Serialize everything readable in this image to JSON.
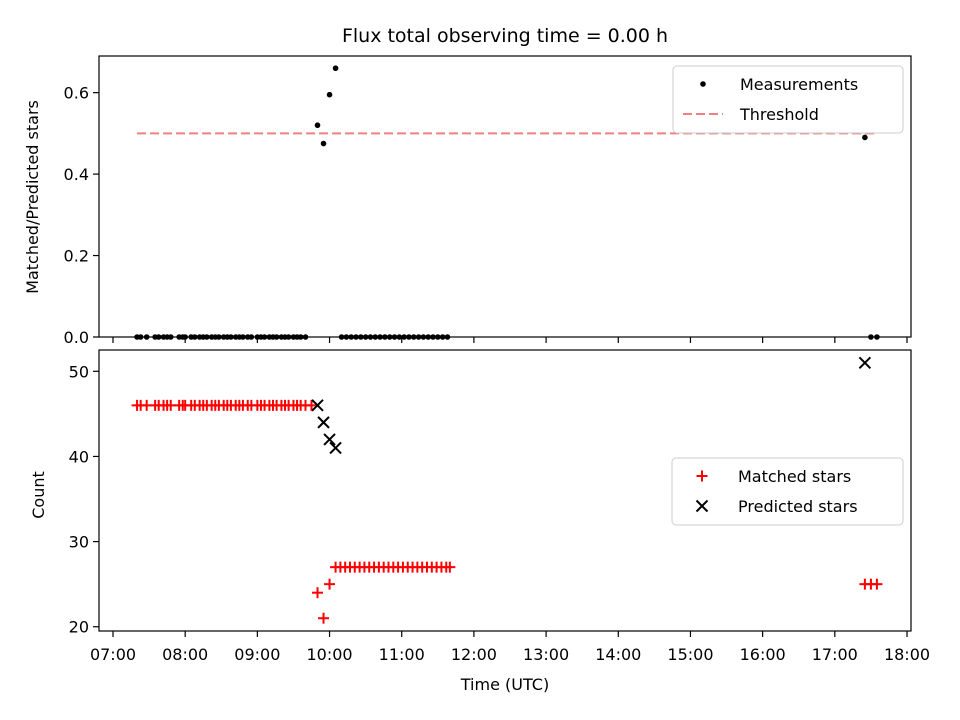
{
  "chart_data": [
    {
      "type": "scatter",
      "title": "Flux total observing time = 0.00 h",
      "ylabel": "Matched/Predicted stars",
      "xlabel": "",
      "xlim": [
        "07:00",
        "18:00"
      ],
      "ylim": [
        0,
        0.69
      ],
      "y_ticks": [
        0.0,
        0.2,
        0.4,
        0.6
      ],
      "y_tick_labels": [
        "0.0",
        "0.2",
        "0.4",
        "0.6"
      ],
      "grid": false,
      "legend_position": "top-right",
      "threshold": {
        "name": "Threshold",
        "y": 0.5,
        "x_start": "07:20",
        "x_end": "17:35",
        "color": "#f08080",
        "style": "dashed"
      },
      "series": [
        {
          "name": "Measurements",
          "marker": "dot",
          "color": "#000000",
          "points": [
            [
              "07:20",
              0.0
            ],
            [
              "07:23",
              0.0
            ],
            [
              "07:28",
              0.0
            ],
            [
              "07:35",
              0.0
            ],
            [
              "07:38",
              0.0
            ],
            [
              "07:42",
              0.0
            ],
            [
              "07:45",
              0.0
            ],
            [
              "07:48",
              0.0
            ],
            [
              "07:55",
              0.0
            ],
            [
              "07:58",
              0.0
            ],
            [
              "08:00",
              0.0
            ],
            [
              "08:05",
              0.0
            ],
            [
              "08:08",
              0.0
            ],
            [
              "08:12",
              0.0
            ],
            [
              "08:15",
              0.0
            ],
            [
              "08:18",
              0.0
            ],
            [
              "08:22",
              0.0
            ],
            [
              "08:25",
              0.0
            ],
            [
              "08:28",
              0.0
            ],
            [
              "08:32",
              0.0
            ],
            [
              "08:35",
              0.0
            ],
            [
              "08:38",
              0.0
            ],
            [
              "08:42",
              0.0
            ],
            [
              "08:45",
              0.0
            ],
            [
              "08:48",
              0.0
            ],
            [
              "08:52",
              0.0
            ],
            [
              "08:55",
              0.0
            ],
            [
              "09:00",
              0.0
            ],
            [
              "09:03",
              0.0
            ],
            [
              "09:06",
              0.0
            ],
            [
              "09:10",
              0.0
            ],
            [
              "09:13",
              0.0
            ],
            [
              "09:16",
              0.0
            ],
            [
              "09:20",
              0.0
            ],
            [
              "09:23",
              0.0
            ],
            [
              "09:26",
              0.0
            ],
            [
              "09:30",
              0.0
            ],
            [
              "09:33",
              0.0
            ],
            [
              "09:36",
              0.0
            ],
            [
              "09:40",
              0.0
            ],
            [
              "09:50",
              0.52
            ],
            [
              "09:55",
              0.475
            ],
            [
              "10:00",
              0.595
            ],
            [
              "10:05",
              0.66
            ],
            [
              "10:10",
              0.0
            ],
            [
              "10:14",
              0.0
            ],
            [
              "10:18",
              0.0
            ],
            [
              "10:22",
              0.0
            ],
            [
              "10:26",
              0.0
            ],
            [
              "10:30",
              0.0
            ],
            [
              "10:34",
              0.0
            ],
            [
              "10:38",
              0.0
            ],
            [
              "10:42",
              0.0
            ],
            [
              "10:46",
              0.0
            ],
            [
              "10:50",
              0.0
            ],
            [
              "10:54",
              0.0
            ],
            [
              "10:58",
              0.0
            ],
            [
              "11:02",
              0.0
            ],
            [
              "11:06",
              0.0
            ],
            [
              "11:10",
              0.0
            ],
            [
              "11:14",
              0.0
            ],
            [
              "11:18",
              0.0
            ],
            [
              "11:22",
              0.0
            ],
            [
              "11:26",
              0.0
            ],
            [
              "11:30",
              0.0
            ],
            [
              "11:34",
              0.0
            ],
            [
              "11:38",
              0.0
            ],
            [
              "17:25",
              0.49
            ],
            [
              "17:30",
              0.0
            ],
            [
              "17:35",
              0.0
            ]
          ]
        }
      ]
    },
    {
      "type": "scatter",
      "title": "",
      "ylabel": "Count",
      "xlabel": "Time (UTC)",
      "xlim": [
        "07:00",
        "18:00"
      ],
      "ylim": [
        19.5,
        52.5
      ],
      "x_ticks": [
        "07:00",
        "08:00",
        "09:00",
        "10:00",
        "11:00",
        "12:00",
        "13:00",
        "14:00",
        "15:00",
        "16:00",
        "17:00",
        "18:00"
      ],
      "y_ticks": [
        20,
        30,
        40,
        50
      ],
      "y_tick_labels": [
        "20",
        "30",
        "40",
        "50"
      ],
      "grid": false,
      "legend_position": "center-right",
      "series": [
        {
          "name": "Matched stars",
          "marker": "plus",
          "color": "#ff0000",
          "points": [
            [
              "07:20",
              46
            ],
            [
              "07:23",
              46
            ],
            [
              "07:28",
              46
            ],
            [
              "07:35",
              46
            ],
            [
              "07:38",
              46
            ],
            [
              "07:42",
              46
            ],
            [
              "07:45",
              46
            ],
            [
              "07:48",
              46
            ],
            [
              "07:55",
              46
            ],
            [
              "07:58",
              46
            ],
            [
              "08:00",
              46
            ],
            [
              "08:05",
              46
            ],
            [
              "08:08",
              46
            ],
            [
              "08:12",
              46
            ],
            [
              "08:15",
              46
            ],
            [
              "08:18",
              46
            ],
            [
              "08:22",
              46
            ],
            [
              "08:25",
              46
            ],
            [
              "08:28",
              46
            ],
            [
              "08:32",
              46
            ],
            [
              "08:35",
              46
            ],
            [
              "08:38",
              46
            ],
            [
              "08:42",
              46
            ],
            [
              "08:45",
              46
            ],
            [
              "08:48",
              46
            ],
            [
              "08:52",
              46
            ],
            [
              "08:55",
              46
            ],
            [
              "09:00",
              46
            ],
            [
              "09:03",
              46
            ],
            [
              "09:06",
              46
            ],
            [
              "09:10",
              46
            ],
            [
              "09:13",
              46
            ],
            [
              "09:16",
              46
            ],
            [
              "09:20",
              46
            ],
            [
              "09:23",
              46
            ],
            [
              "09:26",
              46
            ],
            [
              "09:30",
              46
            ],
            [
              "09:33",
              46
            ],
            [
              "09:36",
              46
            ],
            [
              "09:40",
              46
            ],
            [
              "09:45",
              46
            ],
            [
              "09:50",
              24
            ],
            [
              "09:55",
              21
            ],
            [
              "10:00",
              25
            ],
            [
              "10:05",
              27
            ],
            [
              "10:09",
              27
            ],
            [
              "10:13",
              27
            ],
            [
              "10:17",
              27
            ],
            [
              "10:21",
              27
            ],
            [
              "10:25",
              27
            ],
            [
              "10:29",
              27
            ],
            [
              "10:33",
              27
            ],
            [
              "10:37",
              27
            ],
            [
              "10:41",
              27
            ],
            [
              "10:45",
              27
            ],
            [
              "10:49",
              27
            ],
            [
              "10:53",
              27
            ],
            [
              "10:57",
              27
            ],
            [
              "11:01",
              27
            ],
            [
              "11:05",
              27
            ],
            [
              "11:09",
              27
            ],
            [
              "11:13",
              27
            ],
            [
              "11:17",
              27
            ],
            [
              "11:21",
              27
            ],
            [
              "11:25",
              27
            ],
            [
              "11:29",
              27
            ],
            [
              "11:33",
              27
            ],
            [
              "11:37",
              27
            ],
            [
              "11:40",
              27
            ],
            [
              "17:25",
              25
            ],
            [
              "17:30",
              25
            ],
            [
              "17:35",
              25
            ]
          ]
        },
        {
          "name": "Predicted stars",
          "marker": "x",
          "color": "#000000",
          "points": [
            [
              "09:50",
              46
            ],
            [
              "09:55",
              44
            ],
            [
              "10:00",
              42
            ],
            [
              "10:05",
              41
            ],
            [
              "17:25",
              51
            ]
          ]
        }
      ]
    }
  ]
}
